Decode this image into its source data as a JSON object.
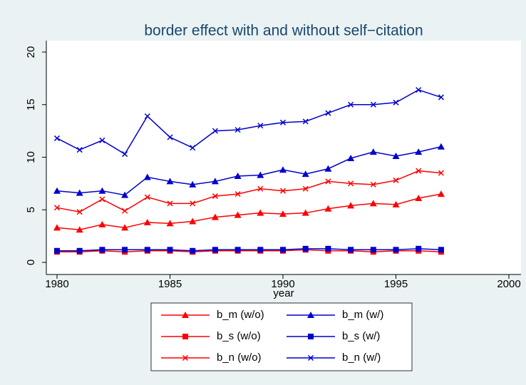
{
  "chart_data": {
    "type": "line",
    "title": "border effect with and without self−citation",
    "x_label": "year",
    "x": [
      1980,
      1981,
      1982,
      1983,
      1984,
      1985,
      1986,
      1987,
      1988,
      1989,
      1990,
      1991,
      1992,
      1993,
      1994,
      1995,
      1996,
      1997
    ],
    "xlim": [
      1980,
      2000
    ],
    "xticks": [
      1980,
      1985,
      1990,
      1995,
      2000
    ],
    "ylim": [
      0,
      20
    ],
    "yticks": [
      0,
      5,
      10,
      15,
      20
    ],
    "grid": false,
    "legend": "bottom",
    "series": [
      {
        "name": "b_m (w/o)",
        "color": "#ff0000",
        "marker": "triangle",
        "values": [
          3.3,
          3.1,
          3.6,
          3.3,
          3.8,
          3.7,
          3.9,
          4.3,
          4.5,
          4.7,
          4.6,
          4.7,
          5.1,
          5.4,
          5.6,
          5.5,
          6.1,
          6.5
        ]
      },
      {
        "name": "b_m (w/)",
        "color": "#0000cc",
        "marker": "triangle",
        "values": [
          6.8,
          6.6,
          6.8,
          6.4,
          8.1,
          7.7,
          7.4,
          7.7,
          8.2,
          8.3,
          8.8,
          8.4,
          8.9,
          9.9,
          10.5,
          10.1,
          10.5,
          11.0
        ]
      },
      {
        "name": "b_s (w/o)",
        "color": "#ff0000",
        "marker": "square",
        "values": [
          1.0,
          1.0,
          1.1,
          1.0,
          1.1,
          1.1,
          1.0,
          1.1,
          1.1,
          1.1,
          1.1,
          1.2,
          1.1,
          1.1,
          1.0,
          1.1,
          1.1,
          1.0
        ]
      },
      {
        "name": "b_s (w/)",
        "color": "#0000cc",
        "marker": "square",
        "values": [
          1.1,
          1.1,
          1.2,
          1.2,
          1.2,
          1.2,
          1.1,
          1.2,
          1.2,
          1.2,
          1.2,
          1.3,
          1.3,
          1.2,
          1.2,
          1.2,
          1.3,
          1.2
        ]
      },
      {
        "name": "b_n (w/o)",
        "color": "#ff0000",
        "marker": "x",
        "values": [
          5.2,
          4.8,
          6.0,
          4.9,
          6.2,
          5.6,
          5.6,
          6.3,
          6.5,
          7.0,
          6.8,
          7.0,
          7.7,
          7.5,
          7.4,
          7.8,
          8.7,
          8.5
        ]
      },
      {
        "name": "b_n (w/)",
        "color": "#0000cc",
        "marker": "x",
        "values": [
          11.8,
          10.7,
          11.6,
          10.3,
          13.9,
          11.9,
          10.9,
          12.5,
          12.6,
          13.0,
          13.3,
          13.4,
          14.2,
          15.0,
          15.0,
          15.2,
          16.4,
          15.7
        ]
      }
    ]
  }
}
